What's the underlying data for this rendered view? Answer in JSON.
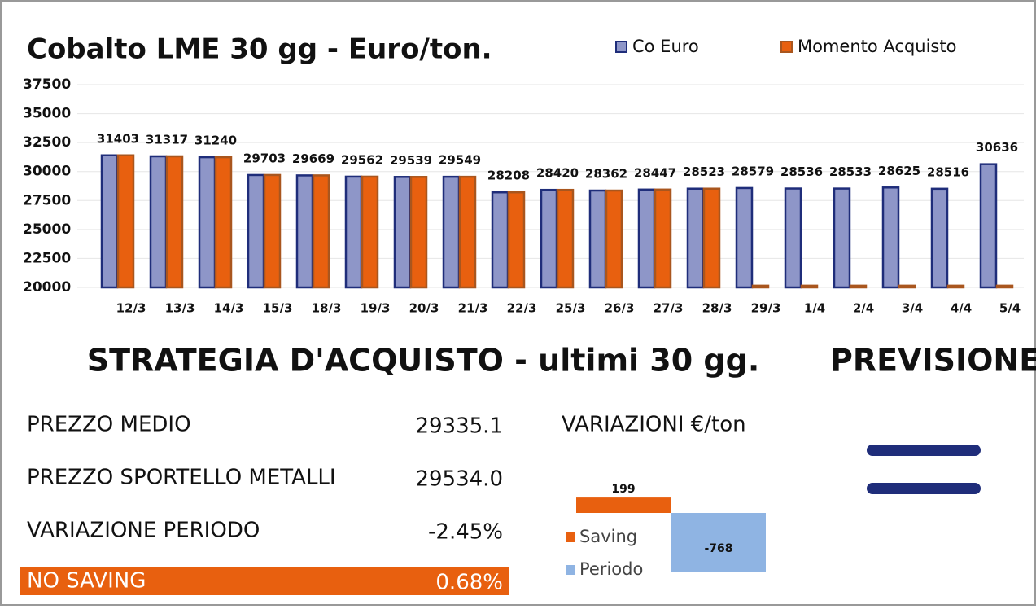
{
  "chart_data": [
    {
      "type": "bar",
      "title": "Cobalto  LME 30 gg - Euro/ton.",
      "categories": [
        "12/3",
        "13/3",
        "14/3",
        "15/3",
        "18/3",
        "19/3",
        "20/3",
        "21/3",
        "22/3",
        "25/3",
        "26/3",
        "27/3",
        "28/3",
        "29/3",
        "1/4",
        "2/4",
        "3/4",
        "4/4",
        "5/4"
      ],
      "series": [
        {
          "name": "Co Euro",
          "color": "#8e96c8",
          "stroke": "#1f2d7a",
          "values": [
            31403,
            31317,
            31240,
            29703,
            29669,
            29562,
            29539,
            29549,
            28208,
            28420,
            28362,
            28447,
            28523,
            28579,
            28536,
            28533,
            28625,
            28516,
            30636
          ]
        },
        {
          "name": "Momento Acquisto",
          "color": "#e8600f",
          "stroke": "#a9561e",
          "values": [
            31403,
            31317,
            31240,
            29703,
            29669,
            29562,
            29539,
            29549,
            28208,
            28420,
            28362,
            28447,
            28523,
            20150,
            20150,
            20150,
            20150,
            20150,
            20150
          ]
        }
      ],
      "ylim": [
        20000,
        37500
      ],
      "yticks": [
        20000,
        22500,
        25000,
        27500,
        30000,
        32500,
        35000,
        37500
      ],
      "grid": true,
      "legend": "top-right"
    },
    {
      "type": "bar",
      "title": "VARIAZIONI €/ton",
      "series": [
        {
          "name": "Saving",
          "color": "#e8600f",
          "values": [
            199
          ]
        },
        {
          "name": "Periodo",
          "color": "#8fb4e3",
          "values": [
            -768
          ]
        }
      ]
    }
  ],
  "strategy": {
    "title": "STRATEGIA D'ACQUISTO - ultimi 30 gg.",
    "rows": [
      {
        "label": "PREZZO MEDIO",
        "value": "29335.1"
      },
      {
        "label": "PREZZO SPORTELLO METALLI",
        "value": "29534.0"
      },
      {
        "label": "VARIAZIONE PERIODO",
        "value": "-2.45%"
      }
    ],
    "result": {
      "label": "NO SAVING",
      "value": "0.68%"
    }
  },
  "forecast": {
    "title": "PREVISIONE"
  }
}
